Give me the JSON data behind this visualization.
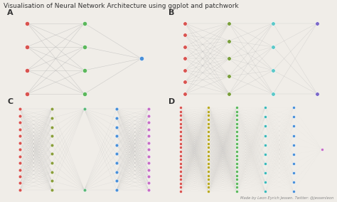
{
  "title": "Visualisation of Neural Network Architecture using ggplot and patchwork",
  "title_fontsize": 6.5,
  "bg_color": "#f0ede8",
  "line_color": "#b0b0b0",
  "footer": "Made by Leon Eyrich Jessen. Twitter: @jessenleon",
  "panels": {
    "A": {
      "layers": [
        {
          "n": 4,
          "color": "#d9534f"
        },
        {
          "n": 4,
          "color": "#5cb85c"
        },
        {
          "n": 1,
          "color": "#4a90d9"
        }
      ],
      "lw": 0.4,
      "la": 0.55,
      "ns": 4.5,
      "xlim": [
        -0.3,
        2.3
      ],
      "ylim": [
        -0.1,
        1.1
      ]
    },
    "B": {
      "layers": [
        {
          "n": 7,
          "color": "#d9534f"
        },
        {
          "n": 5,
          "color": "#7a9e3b"
        },
        {
          "n": 4,
          "color": "#5bc8c8"
        },
        {
          "n": 2,
          "color": "#7b68c8"
        }
      ],
      "lw": 0.3,
      "la": 0.45,
      "ns": 4.0,
      "xlim": [
        -0.3,
        3.3
      ],
      "ylim": [
        -0.1,
        1.1
      ]
    },
    "C": {
      "layers": [
        {
          "n": 13,
          "color": "#d9534f"
        },
        {
          "n": 10,
          "color": "#8a9e3b"
        },
        {
          "n": 2,
          "color": "#5cb87a"
        },
        {
          "n": 10,
          "color": "#4a90d9"
        },
        {
          "n": 13,
          "color": "#c66ec6"
        }
      ],
      "lw": 0.2,
      "la": 0.35,
      "ns": 3.5,
      "xlim": [
        -0.3,
        4.3
      ],
      "ylim": [
        -0.05,
        1.05
      ]
    },
    "D": {
      "layers": [
        {
          "n": 22,
          "color": "#d9534f"
        },
        {
          "n": 22,
          "color": "#b8a820"
        },
        {
          "n": 22,
          "color": "#5cb85c"
        },
        {
          "n": 10,
          "color": "#3ab8b8"
        },
        {
          "n": 10,
          "color": "#4a90d9"
        },
        {
          "n": 1,
          "color": "#c66ec6"
        }
      ],
      "lw": 0.1,
      "la": 0.18,
      "ns": 3.0,
      "xlim": [
        -0.3,
        5.3
      ],
      "ylim": [
        -0.03,
        1.03
      ]
    }
  }
}
